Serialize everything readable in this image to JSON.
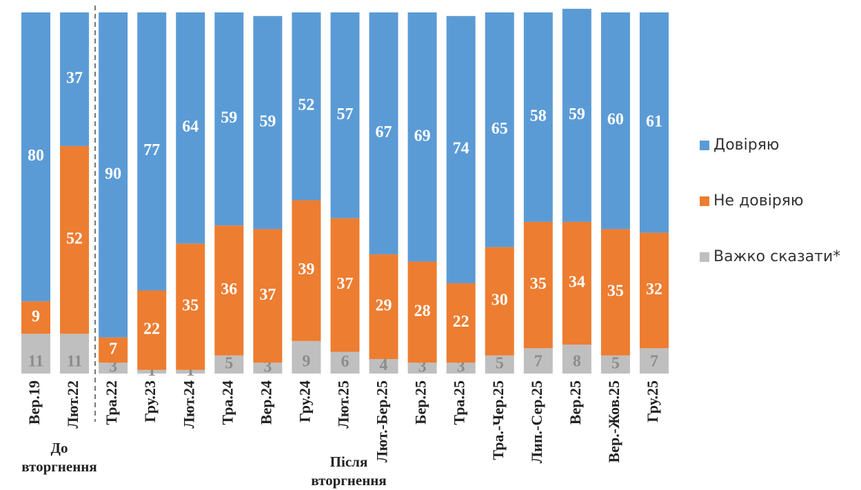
{
  "chart_data": {
    "type": "stacked-bar",
    "categories": [
      "Вер.19",
      "Лют.22",
      "Тра.22",
      "Гру.23",
      "Лют.24",
      "Тра.24",
      "Вер.24",
      "Гру.24",
      "Лют.25",
      "Лют.-Бер.25",
      "Бер.25",
      "Тра.25",
      "Тра.-Чер.25",
      "Лип.-Сер.25",
      "Вер.25",
      "Вер.-Жов.25",
      "Гру.25"
    ],
    "series": [
      {
        "name": "Важко сказати*",
        "color": "#bfbfbf",
        "label_color": "#8c8c8c",
        "values": [
          11,
          11,
          3,
          1,
          1,
          5,
          3,
          9,
          6,
          4,
          3,
          3,
          5,
          7,
          8,
          5,
          7
        ]
      },
      {
        "name": "Не довіряю",
        "color": "#ed7d31",
        "label_color": "#ffffff",
        "values": [
          9,
          52,
          7,
          22,
          35,
          36,
          37,
          39,
          37,
          29,
          28,
          22,
          30,
          35,
          34,
          35,
          32
        ]
      },
      {
        "name": "Довіряю",
        "color": "#5b9bd5",
        "label_color": "#ffffff",
        "values": [
          80,
          37,
          90,
          77,
          64,
          59,
          59,
          52,
          57,
          67,
          69,
          74,
          65,
          58,
          59,
          60,
          61
        ]
      }
    ],
    "ylim": [
      0,
      100
    ],
    "annotations": [
      [
        "До",
        "вторгнення"
      ],
      [
        "Після",
        "вторгнення"
      ]
    ]
  }
}
